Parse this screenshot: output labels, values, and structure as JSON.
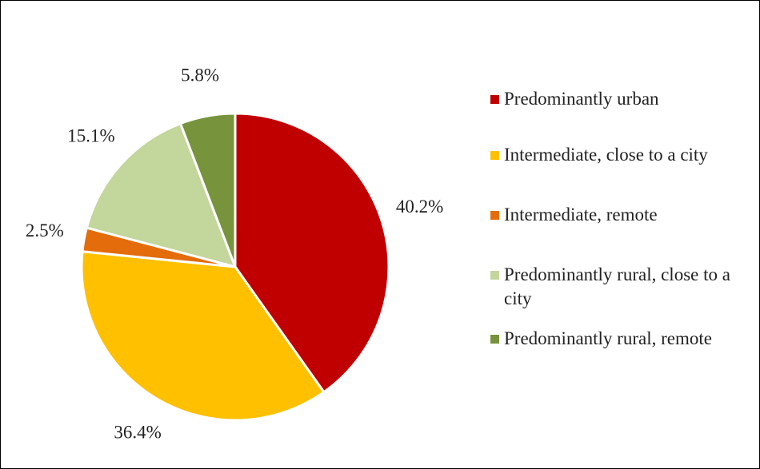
{
  "chart_data": {
    "type": "pie",
    "categories": [
      "Predominantly urban",
      "Intermediate, close to a city",
      "Intermediate, remote",
      "Predominantly rural, close to a city",
      "Predominantly rural, remote"
    ],
    "values": [
      40.2,
      36.4,
      2.5,
      15.1,
      5.8
    ],
    "value_labels": [
      "40.2%",
      "36.4%",
      "2.5%",
      "15.1%",
      "5.8%"
    ],
    "colors": [
      "#c00000",
      "#ffc000",
      "#e46c0a",
      "#c3d69b",
      "#77933c"
    ]
  }
}
